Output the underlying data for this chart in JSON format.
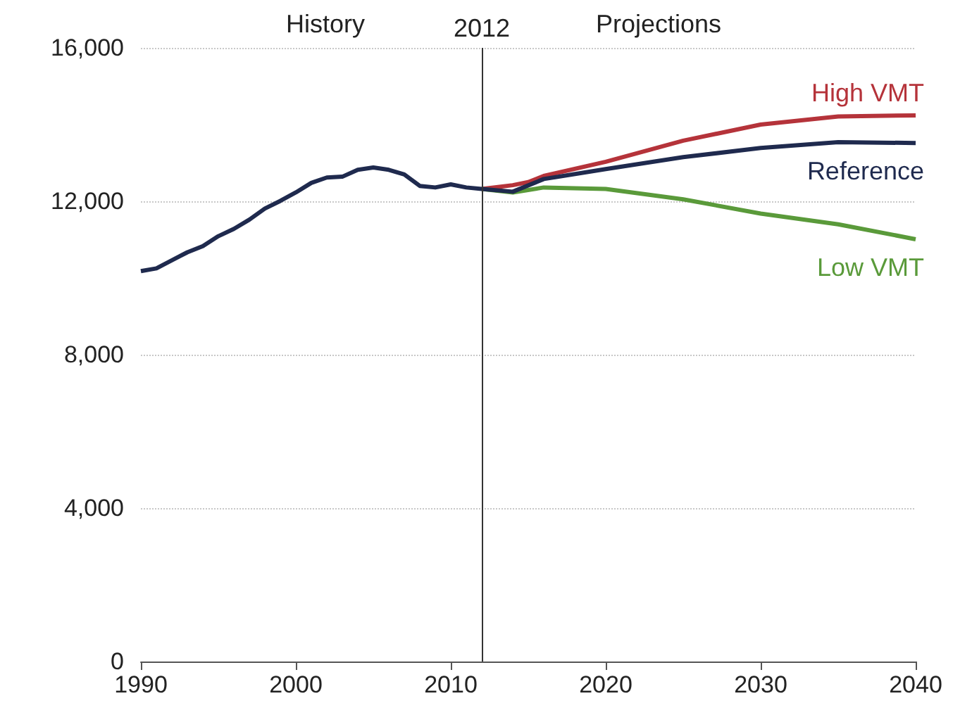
{
  "chart_data": {
    "type": "line",
    "xlim": [
      1990,
      2040
    ],
    "xticks": [
      1990,
      2000,
      2010,
      2020,
      2030,
      2040
    ],
    "ylim": [
      0,
      16000
    ],
    "yticks": [
      {
        "value": 0,
        "label": "0"
      },
      {
        "value": 4000,
        "label": "4,000"
      },
      {
        "value": 8000,
        "label": "8,000"
      },
      {
        "value": 12000,
        "label": "12,000"
      },
      {
        "value": 16000,
        "label": "16,000"
      }
    ],
    "grid": "y",
    "legend": false,
    "marker": "none",
    "line_style": "solid",
    "annotations": [
      "History",
      "Projections"
    ],
    "ref_lines": [
      {
        "axis": "x",
        "value": 2012,
        "label": "2012",
        "color": "#333333"
      }
    ],
    "series": [
      {
        "name": "Reference",
        "color": "#1f2a4e",
        "x": [
          1990,
          1991,
          1992,
          1993,
          1994,
          1995,
          1996,
          1997,
          1998,
          1999,
          2000,
          2001,
          2002,
          2003,
          2004,
          2005,
          2006,
          2007,
          2008,
          2009,
          2010,
          2011,
          2012,
          2014,
          2016,
          2020,
          2025,
          2030,
          2035,
          2040
        ],
        "values": [
          10180,
          10250,
          10460,
          10670,
          10830,
          11090,
          11280,
          11520,
          11810,
          12010,
          12230,
          12480,
          12620,
          12640,
          12820,
          12880,
          12820,
          12700,
          12400,
          12360,
          12440,
          12360,
          12320,
          12250,
          12580,
          12840,
          13150,
          13390,
          13540,
          13520
        ]
      },
      {
        "name": "High VMT",
        "color": "#b5333a",
        "x": [
          2012,
          2014,
          2015,
          2016,
          2020,
          2025,
          2030,
          2035,
          2040
        ],
        "values": [
          12320,
          12420,
          12500,
          12660,
          13030,
          13580,
          14000,
          14210,
          14240
        ]
      },
      {
        "name": "Low VMT",
        "color": "#5a9a3a",
        "x": [
          2012,
          2014,
          2016,
          2020,
          2025,
          2030,
          2035,
          2040
        ],
        "values": [
          12320,
          12230,
          12360,
          12320,
          12050,
          11680,
          11400,
          11010
        ]
      }
    ]
  }
}
